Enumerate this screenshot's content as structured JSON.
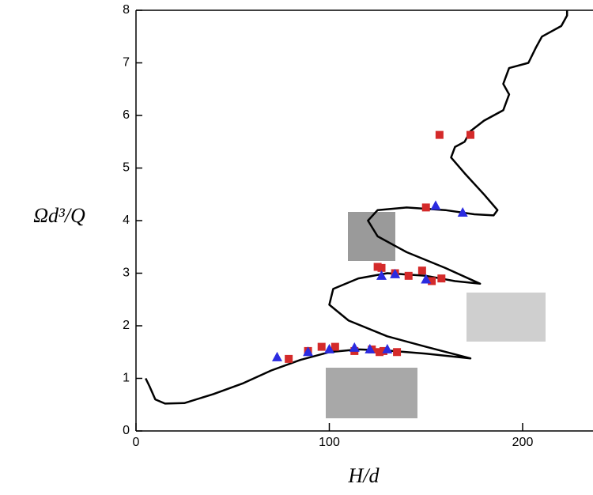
{
  "chart_data": {
    "type": "scatter",
    "xlabel": "H/d",
    "ylabel": "Ωd³/Q",
    "xlim": [
      0,
      236
    ],
    "ylim": [
      0,
      8
    ],
    "xticks": [
      0,
      100,
      200
    ],
    "yticks": [
      0,
      1,
      2,
      3,
      4,
      5,
      6,
      7,
      8
    ],
    "series": [
      {
        "type": "line",
        "color": "#000000",
        "x": [
          5,
          7,
          10,
          15,
          25,
          40,
          55,
          70,
          85,
          100,
          115,
          130,
          150,
          173,
          150,
          130,
          110,
          100,
          102,
          115,
          130,
          150,
          165,
          178,
          160,
          140,
          125,
          120,
          125,
          140,
          160,
          175,
          185,
          187,
          180,
          170,
          163,
          165,
          170,
          173,
          180,
          190,
          193,
          190,
          193,
          203,
          207,
          210,
          220,
          223,
          223
        ],
        "values": [
          1.0,
          0.85,
          0.6,
          0.52,
          0.53,
          0.7,
          0.9,
          1.15,
          1.35,
          1.5,
          1.55,
          1.53,
          1.47,
          1.38,
          1.6,
          1.8,
          2.1,
          2.4,
          2.7,
          2.9,
          3.0,
          2.95,
          2.85,
          2.8,
          3.1,
          3.4,
          3.7,
          4.0,
          4.2,
          4.25,
          4.2,
          4.12,
          4.1,
          4.2,
          4.5,
          4.9,
          5.2,
          5.4,
          5.5,
          5.7,
          5.9,
          6.1,
          6.4,
          6.6,
          6.9,
          7.0,
          7.3,
          7.5,
          7.7,
          7.9,
          8.0
        ]
      },
      {
        "marker": "square",
        "color": "#d42a2a",
        "x": [
          79,
          89,
          96,
          103,
          113,
          122,
          126,
          128,
          135,
          125,
          127,
          134,
          141,
          148,
          153,
          158,
          150,
          157,
          173
        ],
        "values": [
          1.37,
          1.52,
          1.6,
          1.6,
          1.52,
          1.55,
          1.5,
          1.52,
          1.5,
          3.12,
          3.1,
          3.0,
          2.95,
          3.05,
          2.85,
          2.9,
          4.25,
          5.63,
          5.63
        ]
      },
      {
        "marker": "triangle",
        "color": "#2b2be0",
        "x": [
          73,
          89,
          100,
          113,
          121,
          130,
          127,
          134,
          150,
          155,
          169
        ],
        "values": [
          1.4,
          1.5,
          1.55,
          1.58,
          1.55,
          1.55,
          2.95,
          2.98,
          2.88,
          4.28,
          4.15
        ]
      }
    ]
  }
}
